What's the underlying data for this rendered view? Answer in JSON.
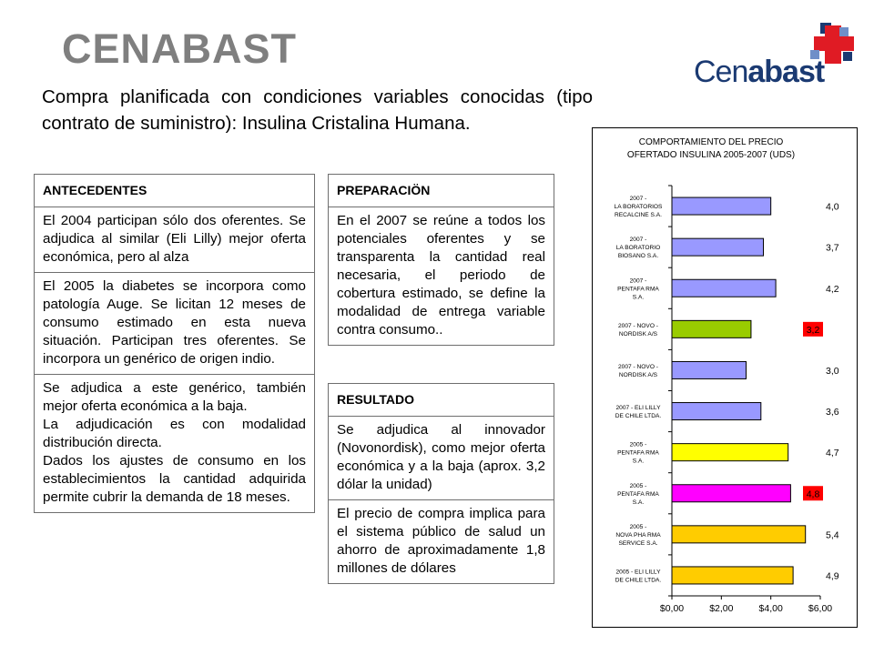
{
  "header": {
    "title": "CENABAST",
    "subtitle": "Compra planificada con condiciones variables conocidas (tipo contrato de suministro): Insulina Cristalina Humana.",
    "logo_text_light": "Cen",
    "logo_text_bold": "abast"
  },
  "left_table": {
    "header": "ANTECEDENTES",
    "cells": [
      "El 2004 participan sólo dos oferentes. Se adjudica al similar (Eli Lilly) mejor oferta económica, pero al alza",
      "El 2005 la diabetes se incorpora como patología Auge. Se licitan 12 meses de consumo estimado en esta nueva situación. Participan tres oferentes. Se incorpora un genérico de origen indio.",
      "Se adjudica a este genérico, también mejor oferta económica a la baja.\nLa adjudicación es con modalidad distribución directa.\nDados los ajustes de consumo en los establecimientos la cantidad adquirida permite cubrir la demanda de 18 meses."
    ]
  },
  "prep_table": {
    "header": "PREPARACIÖN",
    "cells": [
      "En el 2007 se reúne a todos los potenciales oferentes y se transparenta la cantidad real necesaria, el periodo de cobertura estimado, se define la modalidad de entrega variable contra consumo.."
    ]
  },
  "result_table": {
    "header": "RESULTADO",
    "cells": [
      "Se adjudica al innovador (Novonordisk), como mejor oferta económica y a la baja (aprox. 3,2 dólar la unidad)",
      "El precio de compra implica para el sistema público de salud un ahorro de aproximadamente 1,8 millones de dólares"
    ]
  },
  "chart_data": {
    "type": "bar",
    "orientation": "horizontal",
    "title_lines": [
      "COMPORTAMIENTO DEL PRECIO",
      "OFERTADO INSULINA 2005-2007 (UDS)"
    ],
    "categories": [
      [
        "2007 -",
        "LA BORATORIOS",
        "RECALCINE S.A."
      ],
      [
        "2007 -",
        "LA BORATORIO",
        "BIOSANO S.A."
      ],
      [
        "2007 -",
        "PENTAFA RMA",
        "S.A."
      ],
      [
        "2007 - NOVO -",
        "NORDISK A/S"
      ],
      [
        "2007 - NOVO -",
        "NORDISK A/S"
      ],
      [
        "2007 - ELI LILLY",
        "DE CHILE LTDA."
      ],
      [
        "2005 -",
        "PENTAFA RMA",
        "S.A."
      ],
      [
        "2005 -",
        "PENTAFA RMA",
        "S.A."
      ],
      [
        "2005 -",
        "NOVA PHA RMA",
        "SERVICE S.A."
      ],
      [
        "2005 - ELI LILLY",
        "DE CHILE LTDA."
      ]
    ],
    "values": [
      4.0,
      3.7,
      4.2,
      3.2,
      3.0,
      3.6,
      4.7,
      4.8,
      5.4,
      4.9
    ],
    "value_labels": [
      "4,0",
      "3,7",
      "4,2",
      "3,2",
      "3,0",
      "3,6",
      "4,7",
      "4,8",
      "5,4",
      "4,9"
    ],
    "bar_colors": [
      "#9999ff",
      "#9999ff",
      "#9999ff",
      "#99cc00",
      "#9999ff",
      "#9999ff",
      "#ffff00",
      "#ff00ff",
      "#ffcc00",
      "#ffcc00"
    ],
    "highlighted_labels": [
      3,
      7
    ],
    "highlight_color": "#ff0000",
    "x_ticks": [
      "$0,00",
      "$2,00",
      "$4,00",
      "$6,00"
    ],
    "xlim": [
      0,
      6
    ],
    "grid": false,
    "legend": false
  }
}
